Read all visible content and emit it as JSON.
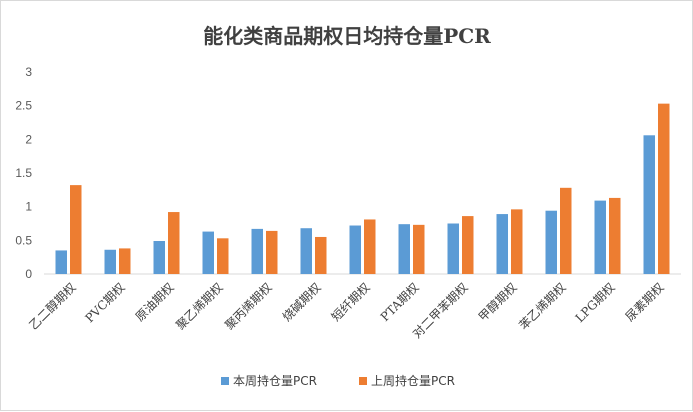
{
  "chart_data": {
    "type": "bar",
    "title": "能化类商品期权日均持仓量PCR",
    "xlabel": "",
    "ylabel": "",
    "ylim": [
      0,
      3
    ],
    "yticks": [
      "0",
      "0.5",
      "1",
      "1.5",
      "2",
      "2.5",
      "3"
    ],
    "grid": false,
    "legend_position": "bottom",
    "categories": [
      "乙二醇期权",
      "PVC期权",
      "原油期权",
      "聚乙烯期权",
      "聚丙烯期权",
      "烧碱期权",
      "短纤期权",
      "PTA期权",
      "对二甲苯期权",
      "甲醇期权",
      "苯乙烯期权",
      "LPG期权",
      "尿素期权"
    ],
    "series": [
      {
        "name": "本周持仓量PCR",
        "color": "#5B9BD5",
        "values": [
          0.35,
          0.36,
          0.49,
          0.63,
          0.67,
          0.68,
          0.72,
          0.74,
          0.75,
          0.89,
          0.94,
          1.09,
          2.06
        ]
      },
      {
        "name": "上周持仓量PCR",
        "color": "#ED7D31",
        "values": [
          1.32,
          0.38,
          0.92,
          0.53,
          0.64,
          0.55,
          0.81,
          0.73,
          0.86,
          0.96,
          1.28,
          1.13,
          2.53
        ]
      }
    ]
  }
}
